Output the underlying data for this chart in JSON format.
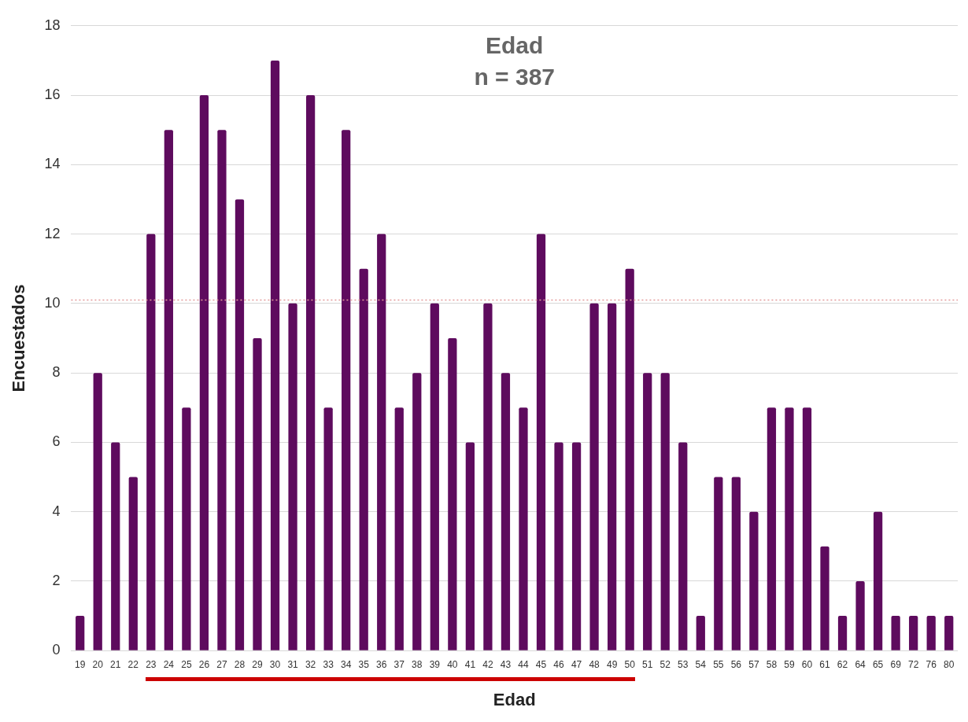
{
  "chart_data": {
    "type": "bar",
    "title": "Edad",
    "subtitle": "n = 387",
    "xlabel": "Edad",
    "ylabel": "Encuestados",
    "categories": [
      "19",
      "20",
      "21",
      "22",
      "23",
      "24",
      "25",
      "26",
      "27",
      "28",
      "29",
      "30",
      "31",
      "32",
      "33",
      "34",
      "35",
      "36",
      "37",
      "38",
      "39",
      "40",
      "41",
      "42",
      "43",
      "44",
      "45",
      "46",
      "47",
      "48",
      "49",
      "50",
      "51",
      "52",
      "53",
      "54",
      "55",
      "56",
      "57",
      "58",
      "59",
      "60",
      "61",
      "62",
      "64",
      "65",
      "69",
      "72",
      "76",
      "80"
    ],
    "values": [
      1,
      8,
      6,
      5,
      12,
      15,
      7,
      16,
      15,
      13,
      9,
      17,
      10,
      16,
      7,
      15,
      11,
      12,
      7,
      8,
      10,
      9,
      6,
      10,
      8,
      7,
      12,
      6,
      6,
      10,
      10,
      11,
      8,
      8,
      6,
      1,
      5,
      5,
      4,
      7,
      7,
      7,
      3,
      1,
      2,
      4,
      1,
      1,
      1,
      1
    ],
    "color": "#5e0b5e",
    "ylim": [
      0,
      18
    ],
    "yticks": [
      0,
      2,
      4,
      6,
      8,
      10,
      12,
      14,
      16,
      18
    ],
    "grid": "y",
    "legend": false,
    "ref_lines": [
      {
        "axis": "y",
        "value": 10.1,
        "color": "#e39a9a",
        "line_style": "dotted"
      }
    ]
  }
}
